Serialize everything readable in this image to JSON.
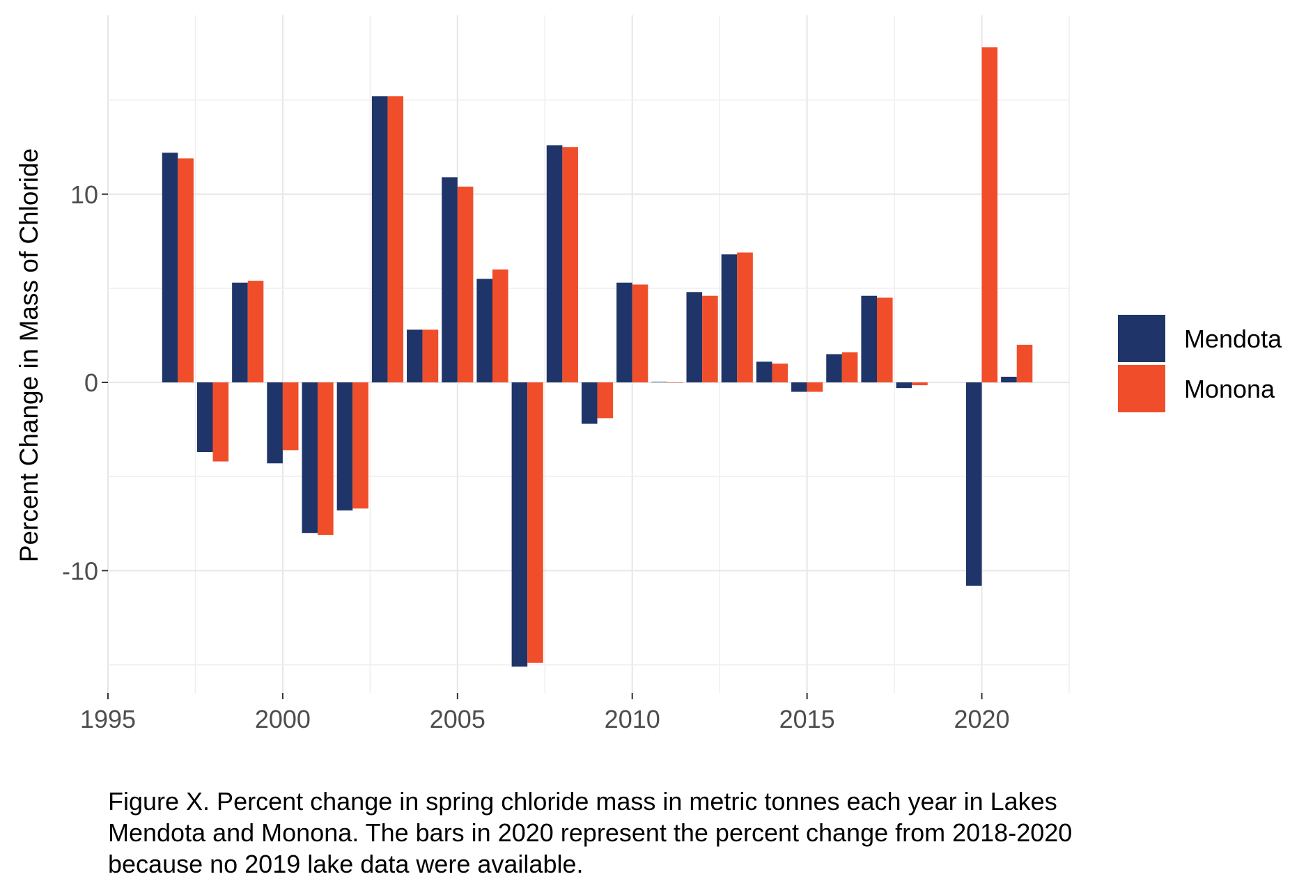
{
  "chart_data": {
    "type": "bar",
    "title": "",
    "xlabel": "",
    "ylabel": "Percent Change in Mass of Chloride",
    "x": [
      1997,
      1998,
      1999,
      2000,
      2001,
      2002,
      2003,
      2004,
      2005,
      2006,
      2007,
      2008,
      2009,
      2010,
      2011,
      2012,
      2013,
      2014,
      2015,
      2016,
      2017,
      2018,
      2020,
      2021
    ],
    "series": [
      {
        "name": "Mendota",
        "color": "#1f3468",
        "values": [
          12.2,
          -3.7,
          5.3,
          -4.3,
          -8.0,
          -6.8,
          15.2,
          2.8,
          10.9,
          5.5,
          -15.1,
          12.6,
          -2.2,
          5.3,
          0.03,
          4.8,
          6.8,
          1.1,
          -0.5,
          1.5,
          4.6,
          -0.3,
          -10.8,
          0.3
        ]
      },
      {
        "name": "Monona",
        "color": "#f04e2b",
        "values": [
          11.9,
          -4.2,
          5.4,
          -3.6,
          -8.1,
          -6.7,
          15.2,
          2.8,
          10.4,
          6.0,
          -14.9,
          12.5,
          -1.9,
          5.2,
          0,
          4.6,
          6.9,
          1.0,
          -0.5,
          1.6,
          4.5,
          -0.15,
          17.8,
          2.0
        ]
      }
    ],
    "xlim": [
      1995,
      2022.5
    ],
    "ylim": [
      -16.5,
      19.5
    ],
    "x_ticks": [
      1995,
      2000,
      2005,
      2010,
      2015,
      2020
    ],
    "x_tick_labels": [
      "1995",
      "2000",
      "2005",
      "2010",
      "2015",
      "2020"
    ],
    "y_ticks": [
      -10,
      0,
      10
    ],
    "y_tick_labels": [
      "-10",
      "0",
      "10"
    ],
    "grid": true,
    "legend_position": "right",
    "legend": [
      "Mendota",
      "Monona"
    ]
  },
  "caption": {
    "lines": [
      "Figure X. Percent change in spring chloride mass in metric tonnes each year in Lakes",
      "Mendota and Monona. The bars in 2020 represent the percent change from 2018-2020",
      "because no 2019 lake data were available."
    ]
  }
}
